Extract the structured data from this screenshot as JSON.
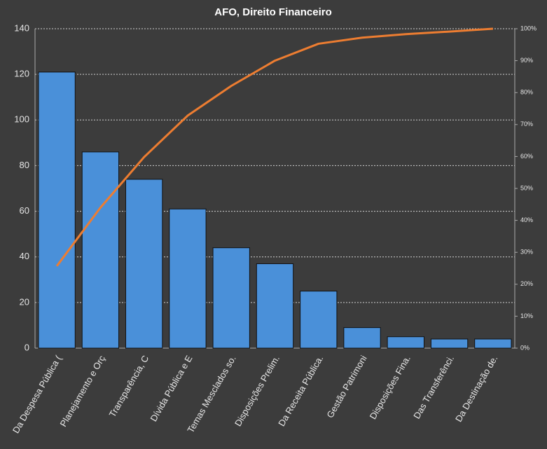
{
  "chart_data": {
    "type": "bar",
    "title": "AFO, Direito  Financeiro",
    "categories": [
      "Da Despesa Pública (",
      "Planejamento e Orç",
      "Transparência, C",
      "Dívida Pública e E",
      "Temas Mesclados so.",
      "Disposições Prelim.",
      "Da Receita Pública.",
      "Gestão Patrimoni",
      "Disposições Fina.",
      "Das Transferênci.",
      "Da Destinação de."
    ],
    "series": [
      {
        "type": "bar",
        "color": "#4a90d9",
        "values": [
          121,
          86,
          74,
          61,
          44,
          37,
          25,
          9,
          5,
          4,
          4
        ]
      },
      {
        "type": "line",
        "axis": "y2",
        "color": "#ed7d31",
        "values": [
          25.7,
          44.0,
          59.8,
          72.8,
          82.1,
          90.0,
          95.3,
          97.2,
          98.3,
          99.1,
          100
        ]
      }
    ],
    "ylim": [
      0,
      140
    ],
    "yticks": [
      0,
      20,
      40,
      60,
      80,
      100,
      120,
      140
    ],
    "y2lim": [
      0,
      100
    ],
    "y2ticks": [
      {
        "value": 0,
        "label": "0%"
      },
      {
        "value": 10,
        "label": "10%"
      },
      {
        "value": 20,
        "label": "20%"
      },
      {
        "value": 30,
        "label": "30%"
      },
      {
        "value": 40,
        "label": "40%"
      },
      {
        "value": 50,
        "label": "50%"
      },
      {
        "value": 60,
        "label": "60%"
      },
      {
        "value": 70,
        "label": "70%"
      },
      {
        "value": 80,
        "label": "80%"
      },
      {
        "value": 90,
        "label": "90%"
      },
      {
        "value": 100,
        "label": "100%"
      }
    ],
    "grid": true
  }
}
